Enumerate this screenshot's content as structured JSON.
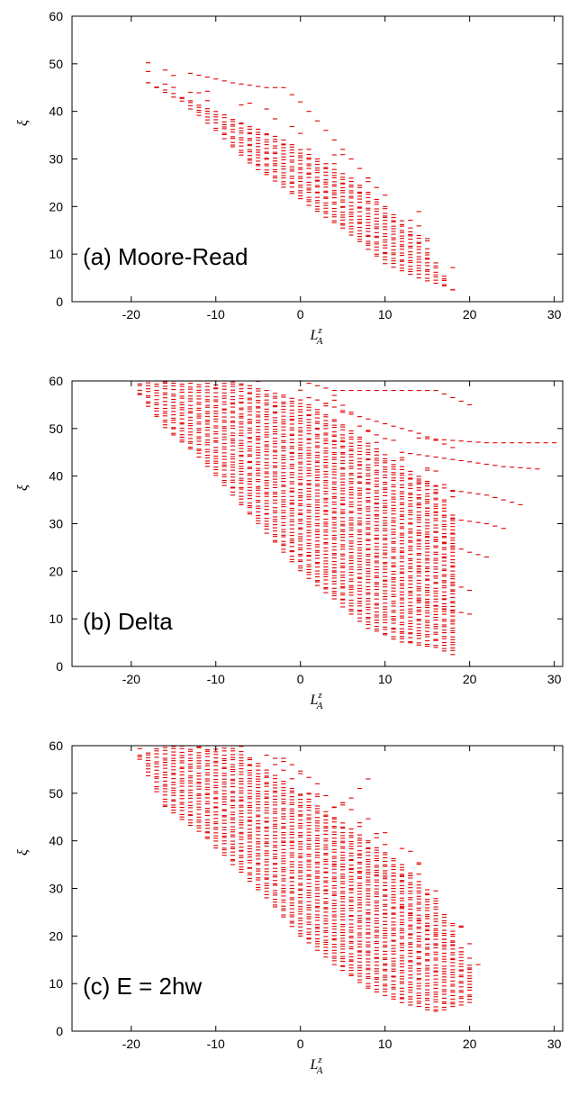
{
  "chart_data": [
    {
      "type": "scatter",
      "marker": "short horizontal dash",
      "panel_label": "(a) Moore-Read",
      "xlabel": "L_A^z",
      "ylabel": "ξ",
      "xlim": [
        -27,
        31
      ],
      "ylim": [
        0,
        60
      ],
      "xticks": [
        "-20",
        "-10",
        "0",
        "10",
        "20",
        "30"
      ],
      "yticks": [
        "0",
        "10",
        "20",
        "30",
        "40",
        "50",
        "60"
      ],
      "color": "#e00000",
      "grid": false,
      "bulk_envelope": {
        "L": [
          -18,
          -14,
          -10,
          -6,
          -2,
          2,
          6,
          10,
          14,
          18
        ],
        "top": [
          46,
          43,
          40,
          37,
          34,
          30,
          26,
          20,
          14,
          2.5
        ],
        "bottom": [
          46,
          42,
          36,
          29,
          24,
          19,
          14,
          8,
          5,
          2.5
        ]
      },
      "branches": [
        {
          "L": [
            -13,
            -8,
            -4,
            -2,
            0,
            3,
            6,
            9
          ],
          "xi": [
            48,
            46,
            45,
            45,
            42,
            36,
            30,
            24
          ]
        }
      ]
    },
    {
      "type": "scatter",
      "marker": "short horizontal dash",
      "panel_label": "(b) Delta",
      "xlabel": "L_A^z",
      "ylabel": "ξ",
      "xlim": [
        -27,
        31
      ],
      "ylim": [
        0,
        60
      ],
      "xticks": [
        "-20",
        "-10",
        "0",
        "10",
        "20",
        "30"
      ],
      "yticks": [
        "0",
        "10",
        "20",
        "30",
        "40",
        "50",
        "60"
      ],
      "color": "#e00000",
      "grid": false,
      "bulk_envelope": {
        "L": [
          -19,
          -16,
          -12,
          -8,
          -4,
          0,
          4,
          8,
          12,
          16,
          18
        ],
        "top": [
          60,
          60,
          60,
          60,
          58,
          56,
          52,
          47,
          42,
          38,
          32
        ],
        "bottom": [
          57,
          50,
          44,
          36,
          28,
          20,
          14,
          8,
          5,
          4,
          2.5
        ]
      },
      "branches": [
        {
          "L": [
            0,
            4,
            8,
            12,
            16,
            20
          ],
          "xi": [
            60,
            58,
            58,
            58,
            58,
            55
          ]
        },
        {
          "L": [
            2,
            6,
            10,
            14,
            18
          ],
          "xi": [
            56,
            53,
            51,
            49,
            46
          ]
        },
        {
          "L": [
            14,
            18,
            22,
            26,
            30
          ],
          "xi": [
            48,
            47.5,
            47,
            47,
            47
          ]
        },
        {
          "L": [
            12,
            16,
            20,
            24,
            28
          ],
          "xi": [
            45,
            44,
            43,
            42,
            41.5
          ]
        },
        {
          "L": [
            14,
            18,
            22,
            26
          ],
          "xi": [
            39,
            37,
            36,
            34
          ]
        },
        {
          "L": [
            14,
            18,
            22,
            24
          ],
          "xi": [
            34,
            31,
            30,
            29
          ]
        },
        {
          "L": [
            14,
            17,
            20,
            22
          ],
          "xi": [
            28,
            26,
            24,
            23
          ]
        },
        {
          "L": [
            14,
            17,
            20
          ],
          "xi": [
            21,
            18,
            16
          ]
        },
        {
          "L": [
            14,
            17,
            20
          ],
          "xi": [
            14,
            12,
            11
          ]
        }
      ]
    },
    {
      "type": "scatter",
      "marker": "short horizontal dash",
      "panel_label": "(c) E = 2hw",
      "xlabel": "L_A^z",
      "ylabel": "ξ",
      "xlim": [
        -27,
        31
      ],
      "ylim": [
        0,
        60
      ],
      "xticks": [
        "-20",
        "-10",
        "0",
        "10",
        "20",
        "30"
      ],
      "yticks": [
        "0",
        "10",
        "20",
        "30",
        "40",
        "50",
        "60"
      ],
      "color": "#e00000",
      "grid": false,
      "bulk_envelope": {
        "L": [
          -19,
          -16,
          -12,
          -8,
          -4,
          0,
          4,
          8,
          12,
          16,
          20
        ],
        "top": [
          58,
          60,
          60,
          60,
          55,
          50,
          45,
          40,
          35,
          28,
          14
        ],
        "bottom": [
          57,
          47,
          42,
          35,
          28,
          20,
          14,
          9,
          6,
          4,
          6
        ]
      },
      "branches": [
        {
          "L": [
            -4,
            -1,
            2,
            4,
            6,
            8
          ],
          "xi": [
            58,
            56,
            52,
            47,
            49,
            53
          ]
        },
        {
          "L": [
            4,
            8,
            12,
            14
          ],
          "xi": [
            35,
            33,
            32.5,
            33
          ]
        },
        {
          "L": [
            12,
            15,
            18,
            21
          ],
          "xi": [
            26,
            22,
            18,
            14
          ]
        }
      ]
    }
  ]
}
